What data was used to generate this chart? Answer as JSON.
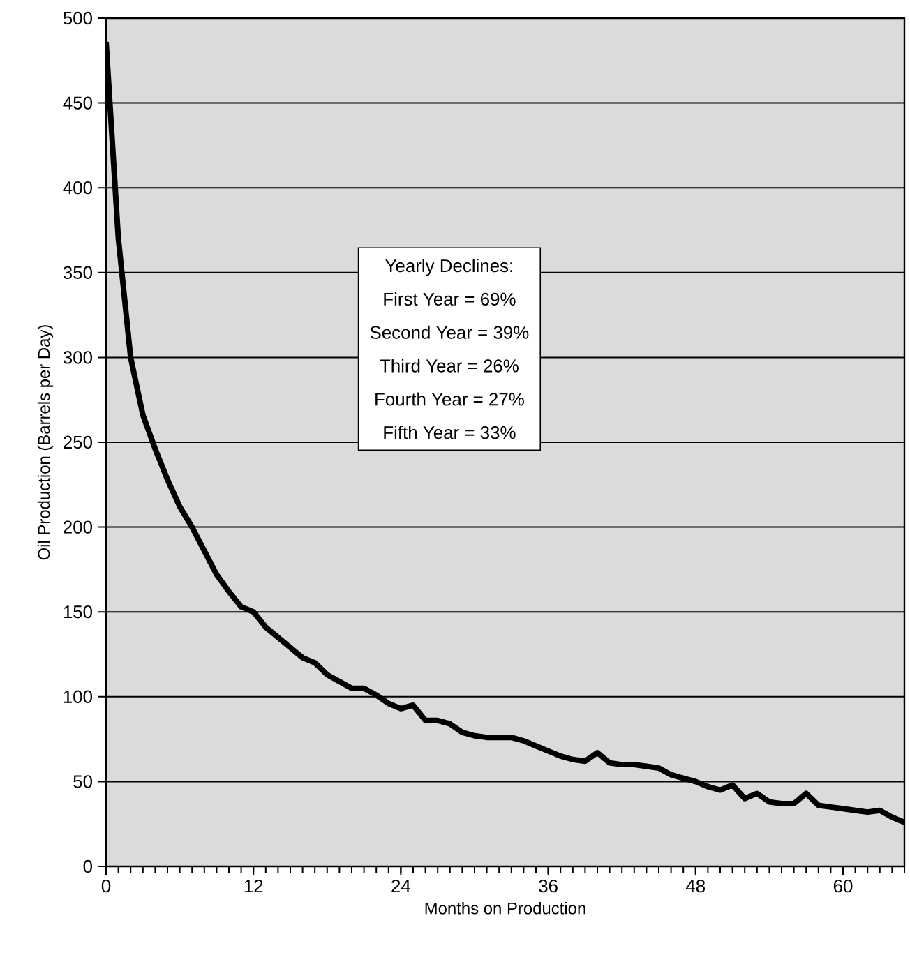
{
  "chart_data": {
    "type": "line",
    "xlabel": "Months on Production",
    "ylabel": "Oil Production (Barrels per Day)",
    "x": [
      0,
      1,
      2,
      3,
      4,
      5,
      6,
      7,
      8,
      9,
      10,
      11,
      12,
      13,
      14,
      15,
      16,
      17,
      18,
      19,
      20,
      21,
      22,
      23,
      24,
      25,
      26,
      27,
      28,
      29,
      30,
      31,
      32,
      33,
      34,
      35,
      36,
      37,
      38,
      39,
      40,
      41,
      42,
      43,
      44,
      45,
      46,
      47,
      48,
      49,
      50,
      51,
      52,
      53,
      54,
      55,
      56,
      57,
      58,
      59,
      60,
      61,
      62,
      63,
      64,
      65
    ],
    "values": [
      486,
      370,
      300,
      266,
      246,
      228,
      212,
      200,
      186,
      172,
      162,
      153,
      150,
      141,
      135,
      129,
      123,
      120,
      113,
      109,
      105,
      105,
      101,
      96,
      93,
      95,
      86,
      86,
      84,
      79,
      77,
      76,
      76,
      76,
      74,
      71,
      68,
      65,
      63,
      62,
      67,
      61,
      60,
      60,
      59,
      58,
      54,
      52,
      50,
      47,
      45,
      48,
      40,
      43,
      38,
      37,
      37,
      43,
      36,
      35,
      34,
      33,
      32,
      33,
      29,
      26
    ],
    "color": "#000000",
    "xlim": [
      0,
      65
    ],
    "ylim": [
      0,
      500
    ],
    "xticks": [
      0,
      12,
      24,
      36,
      48,
      60
    ],
    "yticks": [
      0,
      50,
      100,
      150,
      200,
      250,
      300,
      350,
      400,
      450,
      500
    ],
    "grid": "y",
    "marker": "none",
    "line_style": "solid",
    "annotations": [
      "Yearly Declines:",
      "First Year = 69%",
      "Second Year =  39%",
      "Third Year = 26%",
      "Fourth Year = 27%",
      "Fifth Year = 33%"
    ]
  }
}
